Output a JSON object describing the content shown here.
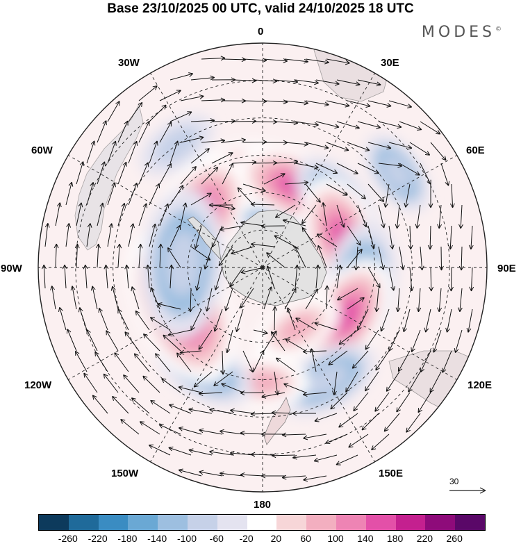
{
  "title": "Base 23/10/2025 00 UTC, valid 24/10/2025 18 UTC",
  "brand": "MODES",
  "brand_mark": "©",
  "longitude_labels": {
    "lon_0": "0",
    "lon_30e": "30E",
    "lon_60e": "60E",
    "lon_90e": "90E",
    "lon_120e": "120E",
    "lon_150e": "150E",
    "lon_180": "180",
    "lon_150w": "150W",
    "lon_120w": "120W",
    "lon_90w": "90W",
    "lon_60w": "60W",
    "lon_30w": "30W"
  },
  "reference_vector": "30",
  "colorbar": {
    "colors": [
      "#0d3a5c",
      "#1f6a9a",
      "#3a8cc2",
      "#6aa8d4",
      "#9dbfe0",
      "#c6d1e8",
      "#e4e3f0",
      "#ffffff",
      "#f7d6d8",
      "#f3afc0",
      "#ee84b4",
      "#e350a8",
      "#c4208f",
      "#8e0b7a",
      "#5a0868"
    ],
    "tick_labels": [
      "-260",
      "-220",
      "-180",
      "-140",
      "-100",
      "-60",
      "-20",
      "20",
      "60",
      "100",
      "140",
      "180",
      "220",
      "260"
    ]
  },
  "anomaly_centers": [
    {
      "lon": 8,
      "lat": -62,
      "value": -190
    },
    {
      "lon": -22,
      "lat": -53,
      "value": 150
    },
    {
      "lon": -56,
      "lat": -57,
      "value": 200
    },
    {
      "lon": 22,
      "lat": -55,
      "value": 150
    },
    {
      "lon": 48,
      "lat": -50,
      "value": -110
    },
    {
      "lon": 70,
      "lat": -56,
      "value": 160
    },
    {
      "lon": 100,
      "lat": -50,
      "value": -160
    },
    {
      "lon": 120,
      "lat": -51,
      "value": 150
    },
    {
      "lon": 150,
      "lat": -38,
      "value": -110
    },
    {
      "lon": 180,
      "lat": -44,
      "value": 80
    },
    {
      "lon": -150,
      "lat": -43,
      "value": -110
    },
    {
      "lon": -115,
      "lat": -54,
      "value": 240
    },
    {
      "lon": -87,
      "lat": -58,
      "value": -210
    },
    {
      "lon": -35,
      "lat": -30,
      "value": -60
    },
    {
      "lon": 55,
      "lat": -24,
      "value": -70
    },
    {
      "lon": 150,
      "lat": -62,
      "value": 80
    }
  ]
}
